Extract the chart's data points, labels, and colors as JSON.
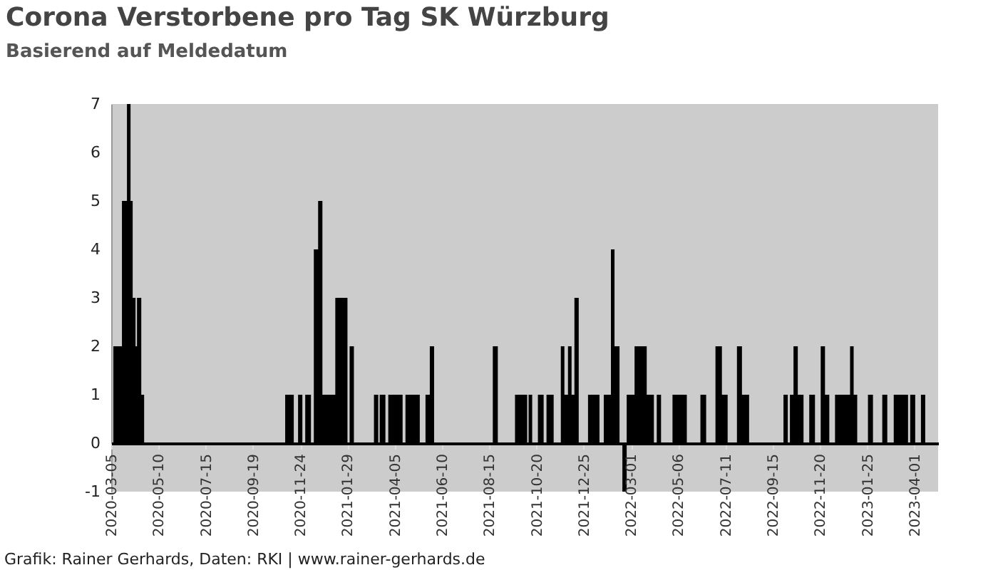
{
  "chart_data": {
    "type": "area",
    "title": "Corona Verstorbene pro Tag SK Würzburg",
    "subtitle": "Basierend auf Meldedatum",
    "annotations": [
      "Grafik: Rainer Gerhards, Daten: RKI | www.rainer-gerhards.de"
    ],
    "xlim": [
      "2020-03-05",
      "2023-05-04"
    ],
    "xticks": [
      "2020-03-05",
      "2020-05-10",
      "2020-07-15",
      "2020-09-19",
      "2020-11-24",
      "2021-01-29",
      "2021-04-05",
      "2021-06-10",
      "2021-08-15",
      "2021-10-20",
      "2021-12-25",
      "2022-03-01",
      "2022-05-06",
      "2022-07-11",
      "2022-09-15",
      "2022-11-20",
      "2023-01-25",
      "2023-04-01"
    ],
    "ylim": [
      -1,
      7
    ],
    "yticks": [
      -1,
      0,
      1,
      2,
      3,
      4,
      5,
      6,
      7
    ],
    "x": [
      "2020-03-05",
      "2020-03-08",
      "2020-03-20",
      "2020-03-27",
      "2020-04-01",
      "2020-04-04",
      "2020-04-08",
      "2020-04-10",
      "2020-04-16",
      "2020-04-20",
      "2020-11-03",
      "2020-11-15",
      "2020-11-21",
      "2020-11-27",
      "2020-12-01",
      "2020-12-09",
      "2020-12-13",
      "2020-12-19",
      "2020-12-25",
      "2021-01-12",
      "2021-01-29",
      "2021-02-01",
      "2021-02-07",
      "2021-03-07",
      "2021-03-13",
      "2021-03-15",
      "2021-03-23",
      "2021-03-27",
      "2021-04-16",
      "2021-04-20",
      "2021-05-10",
      "2021-05-18",
      "2021-05-24",
      "2021-05-30",
      "2021-08-20",
      "2021-08-27",
      "2021-09-20",
      "2021-10-07",
      "2021-10-09",
      "2021-10-14",
      "2021-10-22",
      "2021-10-30",
      "2021-11-03",
      "2021-11-13",
      "2021-11-23",
      "2021-11-28",
      "2021-12-03",
      "2021-12-08",
      "2021-12-12",
      "2021-12-18",
      "2021-12-31",
      "2022-01-16",
      "2022-01-22",
      "2022-02-01",
      "2022-02-06",
      "2022-02-13",
      "2022-02-17",
      "2022-02-23",
      "2022-03-06",
      "2022-03-23",
      "2022-04-02",
      "2022-04-06",
      "2022-04-12",
      "2022-04-28",
      "2022-05-18",
      "2022-06-06",
      "2022-06-14",
      "2022-06-27",
      "2022-07-06",
      "2022-07-14",
      "2022-07-27",
      "2022-08-03",
      "2022-08-13",
      "2022-09-30",
      "2022-10-06",
      "2022-10-09",
      "2022-10-14",
      "2022-10-20",
      "2022-10-28",
      "2022-11-05",
      "2022-11-13",
      "2022-11-21",
      "2022-11-27",
      "2022-12-03",
      "2022-12-11",
      "2023-01-01",
      "2023-01-06",
      "2023-01-11",
      "2023-01-26",
      "2023-02-02",
      "2023-02-15",
      "2023-02-22",
      "2023-03-03",
      "2023-03-23",
      "2023-03-26",
      "2023-04-02",
      "2023-04-10",
      "2023-04-16",
      "2023-05-04"
    ],
    "series": [
      {
        "color": "#000000",
        "values": [
          0,
          2,
          5,
          7,
          5,
          3,
          2,
          3,
          1,
          0,
          1,
          0,
          1,
          0,
          1,
          0,
          4,
          5,
          1,
          3,
          0,
          2,
          0,
          1,
          0,
          1,
          0,
          1,
          0,
          1,
          0,
          1,
          2,
          0,
          2,
          0,
          1,
          0,
          1,
          0,
          1,
          0,
          1,
          0,
          2,
          1,
          2,
          1,
          3,
          0,
          1,
          0,
          1,
          4,
          2,
          0,
          -1,
          1,
          2,
          1,
          0,
          1,
          0,
          1,
          0,
          1,
          0,
          2,
          1,
          0,
          2,
          1,
          0,
          1,
          0,
          1,
          2,
          1,
          0,
          1,
          0,
          2,
          1,
          0,
          1,
          2,
          1,
          0,
          1,
          0,
          1,
          0,
          1,
          0,
          1,
          0,
          1,
          0,
          0
        ]
      }
    ]
  }
}
